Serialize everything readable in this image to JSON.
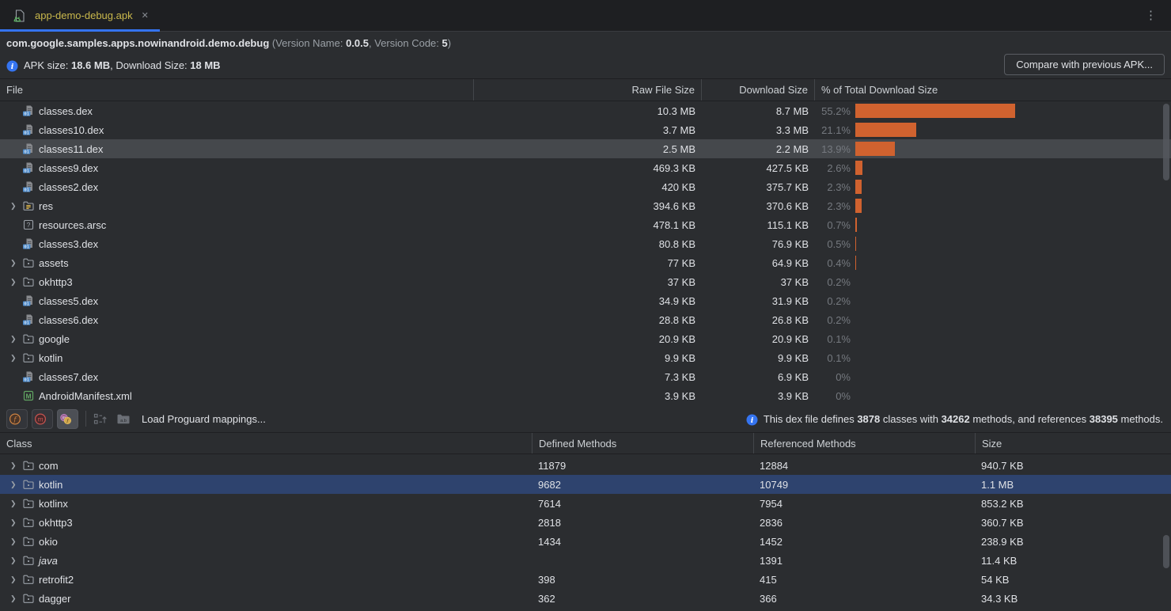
{
  "glyphs": {
    "close": "✕",
    "menu": "⋮",
    "chevron": "❯"
  },
  "colors": {
    "accent_blue": "#3574f0",
    "bar_orange": "#d0622f",
    "selection_blue": "#2e436e",
    "selection_gray": "#45484c",
    "tab_yellow": "#c9b84c"
  },
  "tab": {
    "title": "app-demo-debug.apk"
  },
  "header": {
    "package": "com.google.samples.apps.nowinandroid.demo.debug",
    "version_prefix": " (Version Name: ",
    "version_name": "0.0.5",
    "version_mid": ", Version Code: ",
    "version_code": "5",
    "version_suffix": ")",
    "apk_size_label": "APK size: ",
    "apk_size": "18.6 MB",
    "download_label": ", Download Size: ",
    "download_size": "18 MB",
    "compare_button": "Compare with previous APK..."
  },
  "file_table": {
    "columns": [
      "File",
      "Raw File Size",
      "Download Size",
      "% of Total Download Size"
    ],
    "rows": [
      {
        "name": "classes.dex",
        "icon": "dex",
        "expandable": false,
        "raw": "10.3 MB",
        "download": "8.7 MB",
        "pct": "55.2%",
        "pct_value": 55.2,
        "selected": false
      },
      {
        "name": "classes10.dex",
        "icon": "dex",
        "expandable": false,
        "raw": "3.7 MB",
        "download": "3.3 MB",
        "pct": "21.1%",
        "pct_value": 21.1,
        "selected": false
      },
      {
        "name": "classes11.dex",
        "icon": "dex",
        "expandable": false,
        "raw": "2.5 MB",
        "download": "2.2 MB",
        "pct": "13.9%",
        "pct_value": 13.9,
        "selected": true
      },
      {
        "name": "classes9.dex",
        "icon": "dex",
        "expandable": false,
        "raw": "469.3 KB",
        "download": "427.5 KB",
        "pct": "2.6%",
        "pct_value": 2.6,
        "selected": false
      },
      {
        "name": "classes2.dex",
        "icon": "dex",
        "expandable": false,
        "raw": "420 KB",
        "download": "375.7 KB",
        "pct": "2.3%",
        "pct_value": 2.3,
        "selected": false
      },
      {
        "name": "res",
        "icon": "folder-res",
        "expandable": true,
        "raw": "394.6 KB",
        "download": "370.6 KB",
        "pct": "2.3%",
        "pct_value": 2.3,
        "selected": false
      },
      {
        "name": "resources.arsc",
        "icon": "arsc",
        "expandable": false,
        "raw": "478.1 KB",
        "download": "115.1 KB",
        "pct": "0.7%",
        "pct_value": 0.7,
        "selected": false
      },
      {
        "name": "classes3.dex",
        "icon": "dex",
        "expandable": false,
        "raw": "80.8 KB",
        "download": "76.9 KB",
        "pct": "0.5%",
        "pct_value": 0.5,
        "selected": false
      },
      {
        "name": "assets",
        "icon": "folder",
        "expandable": true,
        "raw": "77 KB",
        "download": "64.9 KB",
        "pct": "0.4%",
        "pct_value": 0.4,
        "selected": false
      },
      {
        "name": "okhttp3",
        "icon": "folder",
        "expandable": true,
        "raw": "37 KB",
        "download": "37 KB",
        "pct": "0.2%",
        "pct_value": 0.2,
        "selected": false
      },
      {
        "name": "classes5.dex",
        "icon": "dex",
        "expandable": false,
        "raw": "34.9 KB",
        "download": "31.9 KB",
        "pct": "0.2%",
        "pct_value": 0.2,
        "selected": false
      },
      {
        "name": "classes6.dex",
        "icon": "dex",
        "expandable": false,
        "raw": "28.8 KB",
        "download": "26.8 KB",
        "pct": "0.2%",
        "pct_value": 0.2,
        "selected": false
      },
      {
        "name": "google",
        "icon": "folder",
        "expandable": true,
        "raw": "20.9 KB",
        "download": "20.9 KB",
        "pct": "0.1%",
        "pct_value": 0.1,
        "selected": false
      },
      {
        "name": "kotlin",
        "icon": "folder",
        "expandable": true,
        "raw": "9.9 KB",
        "download": "9.9 KB",
        "pct": "0.1%",
        "pct_value": 0.1,
        "selected": false
      },
      {
        "name": "classes7.dex",
        "icon": "dex",
        "expandable": false,
        "raw": "7.3 KB",
        "download": "6.9 KB",
        "pct": "0%",
        "pct_value": 0,
        "selected": false
      },
      {
        "name": "AndroidManifest.xml",
        "icon": "manifest",
        "expandable": false,
        "raw": "3.9 KB",
        "download": "3.9 KB",
        "pct": "0%",
        "pct_value": 0,
        "selected": false
      }
    ]
  },
  "toolbar": {
    "load_mappings": "Load Proguard mappings...",
    "icon_glyphs": {
      "fields": "f",
      "methods": "m",
      "referenced_m": "m",
      "referenced_f": "f",
      "deobfuscate": "a.b",
      "dex_badge": "01",
      "arsc": "?",
      "manifest": "M"
    },
    "info": {
      "p1": "This dex file defines ",
      "classes": "3878",
      "p2": " classes with ",
      "methods": "34262",
      "p3": " methods, and references ",
      "ref_methods": "38395",
      "p4": " methods."
    }
  },
  "class_table": {
    "columns": [
      "Class",
      "Defined Methods",
      "Referenced Methods",
      "Size"
    ],
    "rows": [
      {
        "name": "com",
        "defined": "11879",
        "referenced": "12884",
        "size": "940.7 KB",
        "selected": false,
        "italic": false
      },
      {
        "name": "kotlin",
        "defined": "9682",
        "referenced": "10749",
        "size": "1.1 MB",
        "selected": true,
        "italic": false
      },
      {
        "name": "kotlinx",
        "defined": "7614",
        "referenced": "7954",
        "size": "853.2 KB",
        "selected": false,
        "italic": false
      },
      {
        "name": "okhttp3",
        "defined": "2818",
        "referenced": "2836",
        "size": "360.7 KB",
        "selected": false,
        "italic": false
      },
      {
        "name": "okio",
        "defined": "1434",
        "referenced": "1452",
        "size": "238.9 KB",
        "selected": false,
        "italic": false
      },
      {
        "name": "java",
        "defined": "",
        "referenced": "1391",
        "size": "11.4 KB",
        "selected": false,
        "italic": true
      },
      {
        "name": "retrofit2",
        "defined": "398",
        "referenced": "415",
        "size": "54 KB",
        "selected": false,
        "italic": false
      },
      {
        "name": "dagger",
        "defined": "362",
        "referenced": "366",
        "size": "34.3 KB",
        "selected": false,
        "italic": false
      }
    ]
  }
}
